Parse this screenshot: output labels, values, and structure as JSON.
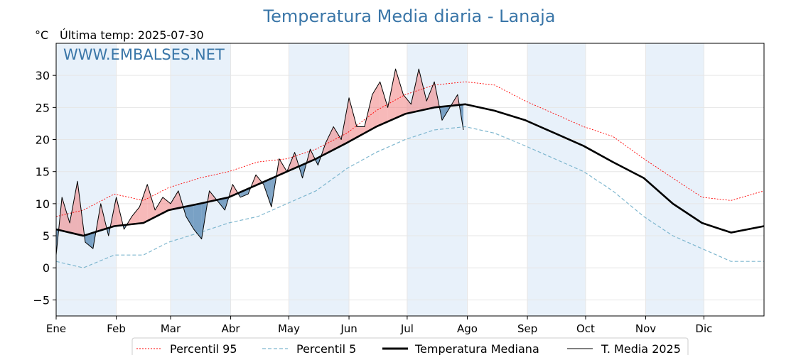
{
  "chart_data": {
    "type": "line",
    "title": "Temperatura Media diaria - Lanaja",
    "unit_label": "°C",
    "last_temp_label": "Última temp: 2025-07-30",
    "watermark": "WWW.EMBALSES.NET",
    "ylim": [
      -7.5,
      35
    ],
    "yticks": [
      -5,
      0,
      5,
      10,
      15,
      20,
      25,
      30
    ],
    "xlim": [
      1,
      366
    ],
    "months": [
      "Ene",
      "Feb",
      "Mar",
      "Abr",
      "May",
      "Jun",
      "Jul",
      "Ago",
      "Sep",
      "Oct",
      "Nov",
      "Dic"
    ],
    "month_start_days": [
      1,
      32,
      60,
      91,
      121,
      152,
      182,
      213,
      244,
      274,
      305,
      335
    ],
    "grid": true,
    "legend_position": "bottom-center",
    "colors": {
      "p95": "#ff0000",
      "p5": "#7fb7cf",
      "median": "#000000",
      "current": "#000000",
      "above": "#f08080",
      "below": "#4a7fae",
      "shade": "#e8f1fa"
    },
    "series": [
      {
        "name": "Percentil 95",
        "key": "p95",
        "x": [
          1,
          15,
          31,
          46,
          59,
          75,
          90,
          105,
          120,
          135,
          151,
          166,
          181,
          196,
          212,
          227,
          243,
          258,
          273,
          288,
          304,
          319,
          334,
          349,
          366
        ],
        "y": [
          8,
          9,
          11.5,
          10.5,
          12.5,
          14,
          15,
          16.5,
          17,
          18.5,
          21,
          24.5,
          27,
          28.5,
          29,
          28.5,
          26,
          24,
          22,
          20.5,
          17,
          14,
          11,
          10.5,
          12
        ]
      },
      {
        "name": "Percentil 5",
        "key": "p5",
        "x": [
          1,
          15,
          31,
          46,
          59,
          75,
          90,
          105,
          120,
          135,
          151,
          166,
          181,
          196,
          212,
          227,
          243,
          258,
          273,
          288,
          304,
          319,
          334,
          349,
          366
        ],
        "y": [
          1,
          0,
          2,
          2,
          4,
          5.5,
          7,
          8,
          10,
          12,
          15.5,
          18,
          20,
          21.5,
          22,
          21,
          19,
          17,
          15,
          12,
          8,
          5,
          3,
          1,
          1
        ]
      },
      {
        "name": "Temperatura Mediana",
        "key": "median",
        "x": [
          1,
          15,
          31,
          46,
          59,
          75,
          90,
          105,
          120,
          135,
          151,
          166,
          181,
          196,
          212,
          227,
          243,
          258,
          273,
          288,
          304,
          319,
          334,
          349,
          366
        ],
        "y": [
          6,
          5,
          6.5,
          7,
          9,
          10,
          11,
          13,
          15,
          17,
          19.5,
          22,
          24,
          25,
          25.5,
          24.5,
          23,
          21,
          19,
          16.5,
          14,
          10,
          7,
          5.5,
          6.5
        ]
      },
      {
        "name": "T. Media 2025",
        "key": "current",
        "x": [
          1,
          4,
          8,
          12,
          16,
          20,
          24,
          28,
          32,
          36,
          40,
          44,
          48,
          52,
          56,
          60,
          64,
          68,
          72,
          76,
          80,
          84,
          88,
          92,
          96,
          100,
          104,
          108,
          112,
          116,
          120,
          124,
          128,
          132,
          136,
          140,
          144,
          148,
          152,
          156,
          160,
          164,
          168,
          172,
          176,
          180,
          184,
          188,
          192,
          196,
          200,
          204,
          208,
          211
        ],
        "y": [
          2,
          11,
          7,
          13.5,
          4,
          3,
          10,
          5,
          11,
          6,
          8,
          9.5,
          13,
          9,
          11,
          10,
          12,
          8,
          6,
          4.5,
          12,
          10.5,
          9,
          13,
          11,
          11.5,
          14.5,
          13,
          9.5,
          17,
          15,
          18,
          14,
          18.5,
          16,
          19.5,
          22,
          20,
          26.5,
          22,
          22,
          27,
          29,
          25,
          31,
          27,
          25.5,
          31,
          26,
          29,
          23,
          25,
          27,
          21.5
        ]
      }
    ],
    "legend": {
      "p95": "Percentil 95",
      "p5": "Percentil 5",
      "median": "Temperatura Mediana",
      "current": "T. Media 2025"
    }
  }
}
